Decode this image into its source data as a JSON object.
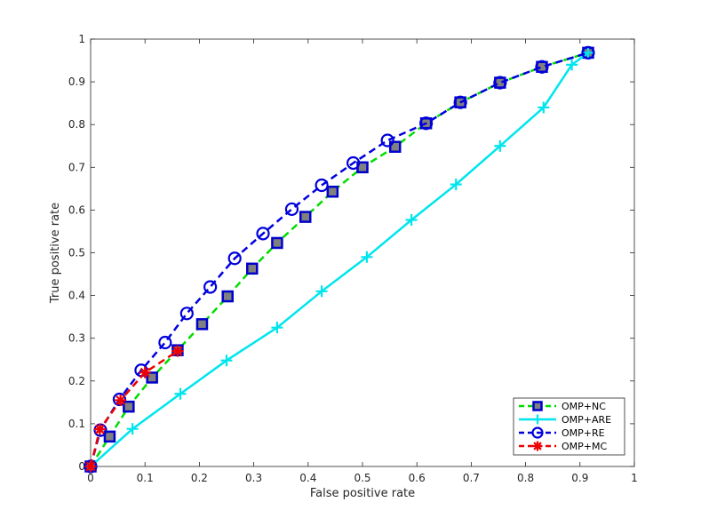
{
  "chart_data": {
    "type": "line",
    "xlabel": "False positive rate",
    "ylabel": "True positive rate",
    "xlim": [
      0,
      1
    ],
    "ylim": [
      0,
      1
    ],
    "xticks": [
      "0",
      "0.1",
      "0.2",
      "0.3",
      "0.4",
      "0.5",
      "0.6",
      "0.7",
      "0.8",
      "0.9",
      "1"
    ],
    "yticks": [
      "0",
      "0.1",
      "0.2",
      "0.3",
      "0.4",
      "0.5",
      "0.6",
      "0.7",
      "0.8",
      "0.9",
      "1"
    ],
    "grid": false,
    "legend_position": "bottom-right",
    "series": [
      {
        "name": "OMP+NC",
        "color": "#00dd00",
        "line_style": "dashed",
        "marker": "square",
        "marker_edge": "#0000cc",
        "marker_fill": "#808080",
        "x": [
          0,
          0.035,
          0.07,
          0.113,
          0.16,
          0.205,
          0.252,
          0.297,
          0.343,
          0.395,
          0.445,
          0.5,
          0.56,
          0.617,
          0.68,
          0.753,
          0.83,
          0.915
        ],
        "y": [
          0,
          0.07,
          0.14,
          0.208,
          0.272,
          0.333,
          0.398,
          0.463,
          0.523,
          0.584,
          0.643,
          0.7,
          0.748,
          0.803,
          0.852,
          0.898,
          0.935,
          0.968
        ]
      },
      {
        "name": "OMP+ARE",
        "color": "#00e5ee",
        "line_style": "solid",
        "marker": "plus",
        "x": [
          0,
          0.077,
          0.165,
          0.25,
          0.343,
          0.425,
          0.508,
          0.59,
          0.672,
          0.753,
          0.833,
          0.885,
          0.915
        ],
        "y": [
          0,
          0.088,
          0.17,
          0.248,
          0.325,
          0.41,
          0.49,
          0.577,
          0.66,
          0.75,
          0.84,
          0.94,
          0.968
        ]
      },
      {
        "name": "OMP+RE",
        "color": "#0000dd",
        "line_style": "dashed",
        "marker": "circle",
        "x": [
          0,
          0.018,
          0.053,
          0.093,
          0.137,
          0.177,
          0.22,
          0.265,
          0.317,
          0.37,
          0.425,
          0.483,
          0.546,
          0.617,
          0.68,
          0.753,
          0.83,
          0.915
        ],
        "y": [
          0,
          0.085,
          0.157,
          0.225,
          0.29,
          0.358,
          0.42,
          0.487,
          0.545,
          0.602,
          0.658,
          0.71,
          0.763,
          0.803,
          0.852,
          0.898,
          0.935,
          0.968
        ]
      },
      {
        "name": "OMP+MC",
        "color": "#ee0000",
        "line_style": "dashed",
        "marker": "asterisk",
        "x": [
          0,
          0.017,
          0.055,
          0.1,
          0.16
        ],
        "y": [
          0,
          0.087,
          0.155,
          0.22,
          0.27
        ]
      }
    ]
  }
}
